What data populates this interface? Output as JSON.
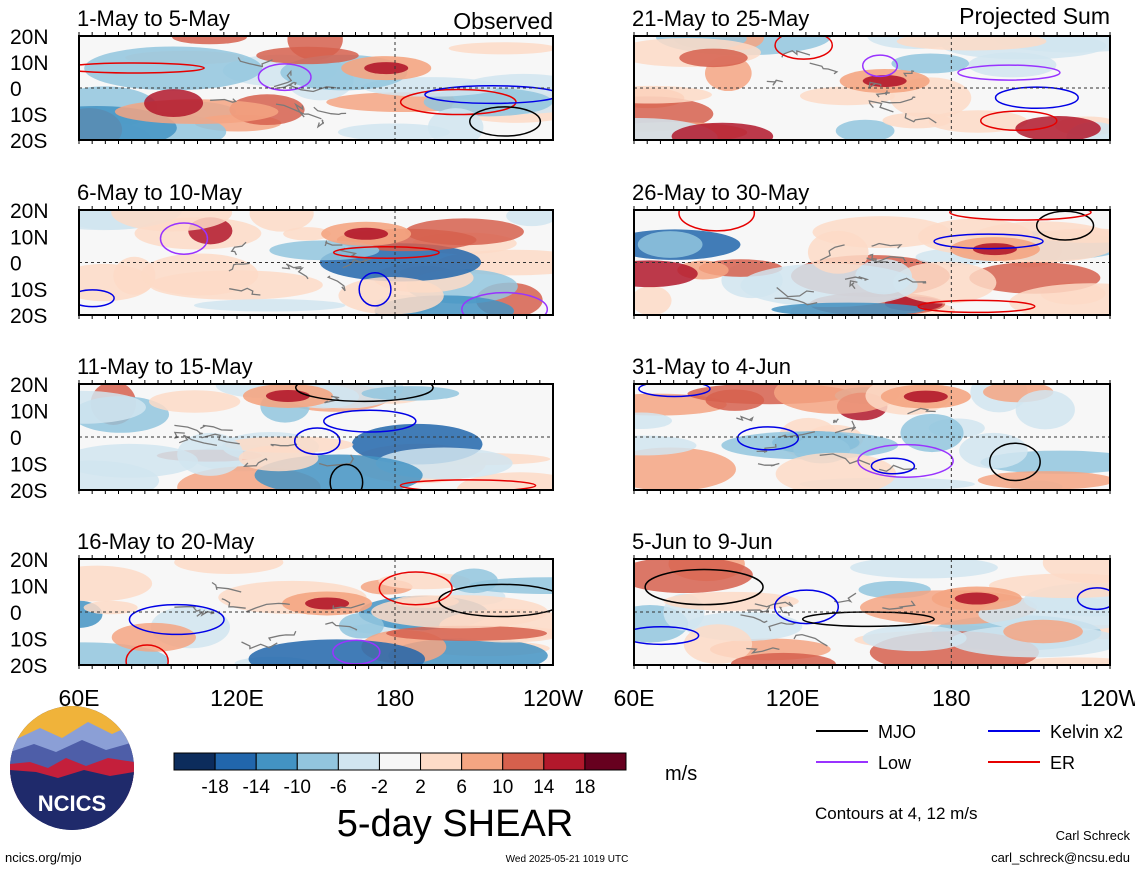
{
  "chart_data": {
    "type": "heatmap",
    "title": "5-day SHEAR",
    "observed_label": "Observed",
    "projected_label": "Projected Sum",
    "x_ticks": [
      "60E",
      "120E",
      "180",
      "120W"
    ],
    "y_ticks": [
      "20N",
      "10N",
      "0",
      "10S",
      "20S"
    ],
    "xlim": [
      "60E",
      "120W"
    ],
    "ylim": [
      "20S",
      "20N"
    ],
    "grid": false,
    "colorbar": {
      "unit": "m/s",
      "tick_labels": [
        "-18",
        "-14",
        "-10",
        "-6",
        "-2",
        "2",
        "6",
        "10",
        "14",
        "18"
      ],
      "colors": [
        "#0c2c5c",
        "#2166ac",
        "#4393c3",
        "#92c5de",
        "#d1e5f0",
        "#f7f7f7",
        "#fddbc7",
        "#f4a582",
        "#d6604d",
        "#b2182b",
        "#67001f"
      ]
    },
    "legend": {
      "placement": "bottom-right",
      "items": [
        {
          "label": "MJO",
          "color": "#000000"
        },
        {
          "label": "Kelvin x2",
          "color": "#0000e6"
        },
        {
          "label": "Low",
          "color": "#9933ff"
        },
        {
          "label": "ER",
          "color": "#e60000"
        }
      ],
      "note": "Contours at 4, 12 m/s"
    },
    "panels": [
      {
        "period": "1-May to 5-May",
        "column": "Observed"
      },
      {
        "period": "6-May to 10-May",
        "column": "Observed"
      },
      {
        "period": "11-May to 15-May",
        "column": "Observed"
      },
      {
        "period": "16-May to 20-May",
        "column": "Observed"
      },
      {
        "period": "21-May to 25-May",
        "column": "Projected Sum"
      },
      {
        "period": "26-May to 30-May",
        "column": "Projected Sum"
      },
      {
        "period": "31-May to 4-Jun",
        "column": "Projected Sum"
      },
      {
        "period": "5-Jun to 9-Jun",
        "column": "Projected Sum"
      }
    ]
  },
  "footer": {
    "logo_text": "NCICS",
    "url": "ncics.org/mjo",
    "timestamp": "Wed 2025-05-21 1019 UTC",
    "author": "Carl Schreck",
    "email": "carl_schreck@ncsu.edu"
  }
}
